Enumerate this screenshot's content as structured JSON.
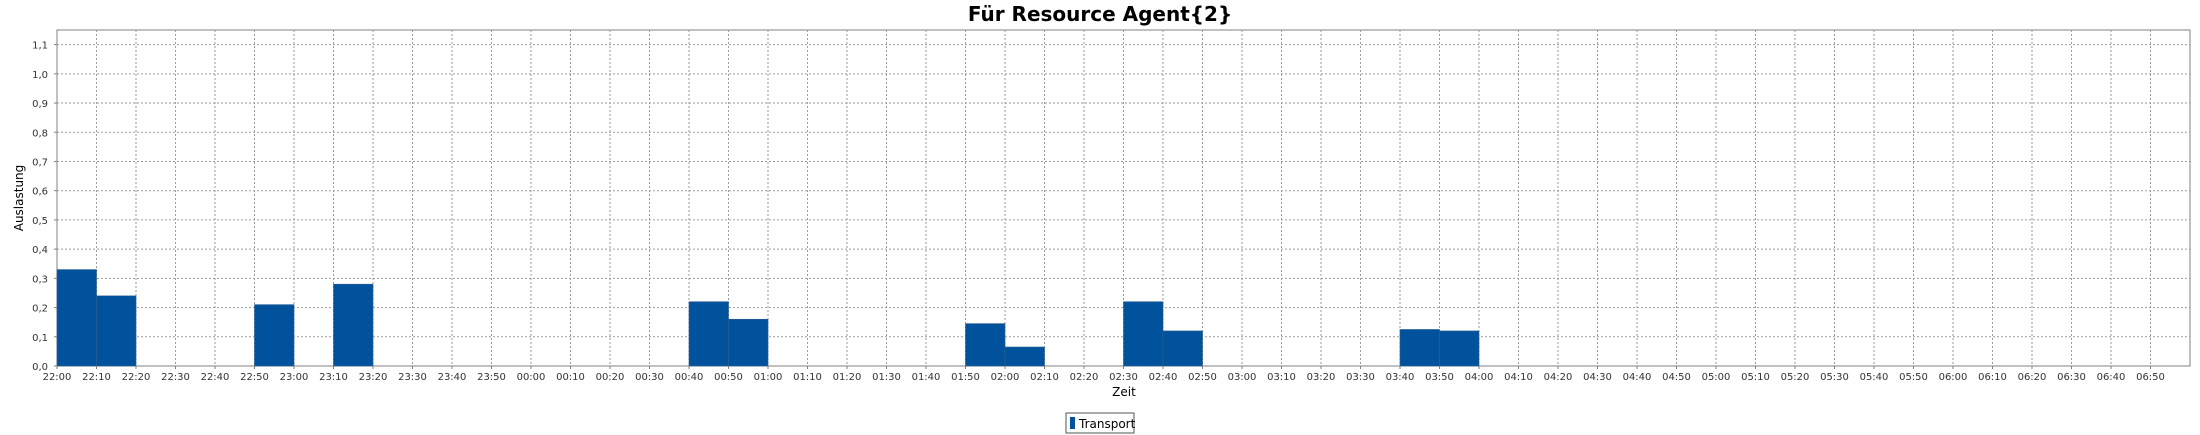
{
  "chart_data": {
    "type": "bar",
    "title": "Für Resource Agent{2}",
    "xlabel": "Zeit",
    "ylabel": "Auslastung",
    "ylim": [
      0,
      1.15
    ],
    "yticks": [
      "0,0",
      "0,1",
      "0,2",
      "0,3",
      "0,4",
      "0,5",
      "0,6",
      "0,7",
      "0,8",
      "0,9",
      "1,0",
      "1,1"
    ],
    "categories": [
      "22:00",
      "22:10",
      "22:20",
      "22:30",
      "22:40",
      "22:50",
      "23:00",
      "23:10",
      "23:20",
      "23:30",
      "23:40",
      "23:50",
      "00:00",
      "00:10",
      "00:20",
      "00:30",
      "00:40",
      "00:50",
      "01:00",
      "01:10",
      "01:20",
      "01:30",
      "01:40",
      "01:50",
      "02:00",
      "02:10",
      "02:20",
      "02:30",
      "02:40",
      "02:50",
      "03:00",
      "03:10",
      "03:20",
      "03:30",
      "03:40",
      "03:50",
      "04:00",
      "04:10",
      "04:20",
      "04:30",
      "04:40",
      "04:50",
      "05:00",
      "05:10",
      "05:20",
      "05:30",
      "05:40",
      "05:50",
      "06:00",
      "06:10",
      "06:20",
      "06:30",
      "06:40",
      "06:50"
    ],
    "series": [
      {
        "name": "Transport",
        "color": "#00529c",
        "values": [
          0.33,
          0.24,
          0,
          0,
          0,
          0.21,
          0,
          0.28,
          0,
          0,
          0,
          0,
          0,
          0,
          0,
          0,
          0.22,
          0.16,
          0,
          0,
          0,
          0,
          0,
          0.145,
          0.065,
          0,
          0,
          0.22,
          0.12,
          0,
          0,
          0,
          0,
          0,
          0.125,
          0.12,
          0,
          0,
          0,
          0,
          0,
          0,
          0,
          0,
          0,
          0,
          0,
          0,
          0,
          0,
          0,
          0,
          0,
          0
        ]
      }
    ],
    "grid": true,
    "legend_position": "bottom-center"
  }
}
